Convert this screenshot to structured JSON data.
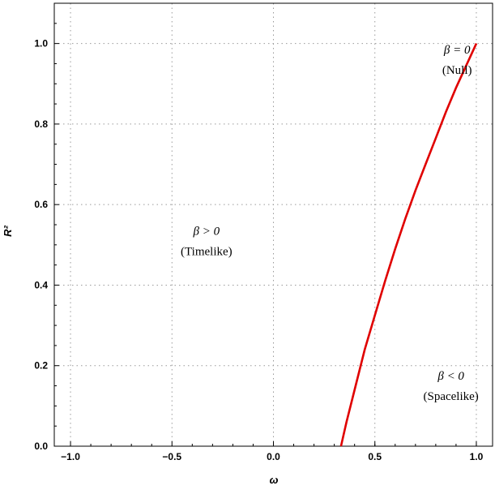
{
  "chart_data": {
    "type": "line",
    "xlabel": "ω",
    "ylabel": "R²",
    "xlim": [
      -1.08,
      1.08
    ],
    "ylim": [
      0,
      1.1
    ],
    "grid": true,
    "x_ticks": [
      {
        "value": -1.0,
        "label": "−1.0"
      },
      {
        "value": -0.5,
        "label": "−0.5"
      },
      {
        "value": 0.0,
        "label": "0.0"
      },
      {
        "value": 0.5,
        "label": "0.5"
      },
      {
        "value": 1.0,
        "label": "1.0"
      }
    ],
    "y_ticks": [
      {
        "value": 0.0,
        "label": "0.0"
      },
      {
        "value": 0.2,
        "label": "0.2"
      },
      {
        "value": 0.4,
        "label": "0.4"
      },
      {
        "value": 0.6,
        "label": "0.6"
      },
      {
        "value": 0.8,
        "label": "0.8"
      },
      {
        "value": 1.0,
        "label": "1.0"
      }
    ],
    "series": [
      {
        "color": "#e00000",
        "x": [
          0.333,
          0.36,
          0.4,
          0.45,
          0.5,
          0.55,
          0.6,
          0.65,
          0.7,
          0.75,
          0.8,
          0.85,
          0.9,
          0.95,
          1.0
        ],
        "y": [
          0.0,
          0.06,
          0.14,
          0.24,
          0.325,
          0.41,
          0.49,
          0.565,
          0.635,
          0.7,
          0.765,
          0.83,
          0.89,
          0.945,
          1.0
        ]
      }
    ],
    "annotations": [
      {
        "id": "null",
        "x": 0.905,
        "y": 0.975,
        "line1": "β = 0",
        "line2": "(Null)"
      },
      {
        "id": "timelike",
        "x": -0.33,
        "y": 0.525,
        "line1": "β > 0",
        "line2": "(Timelike)"
      },
      {
        "id": "spacelike",
        "x": 0.875,
        "y": 0.165,
        "line1": "β < 0",
        "line2": "(Spacelike)"
      }
    ]
  }
}
